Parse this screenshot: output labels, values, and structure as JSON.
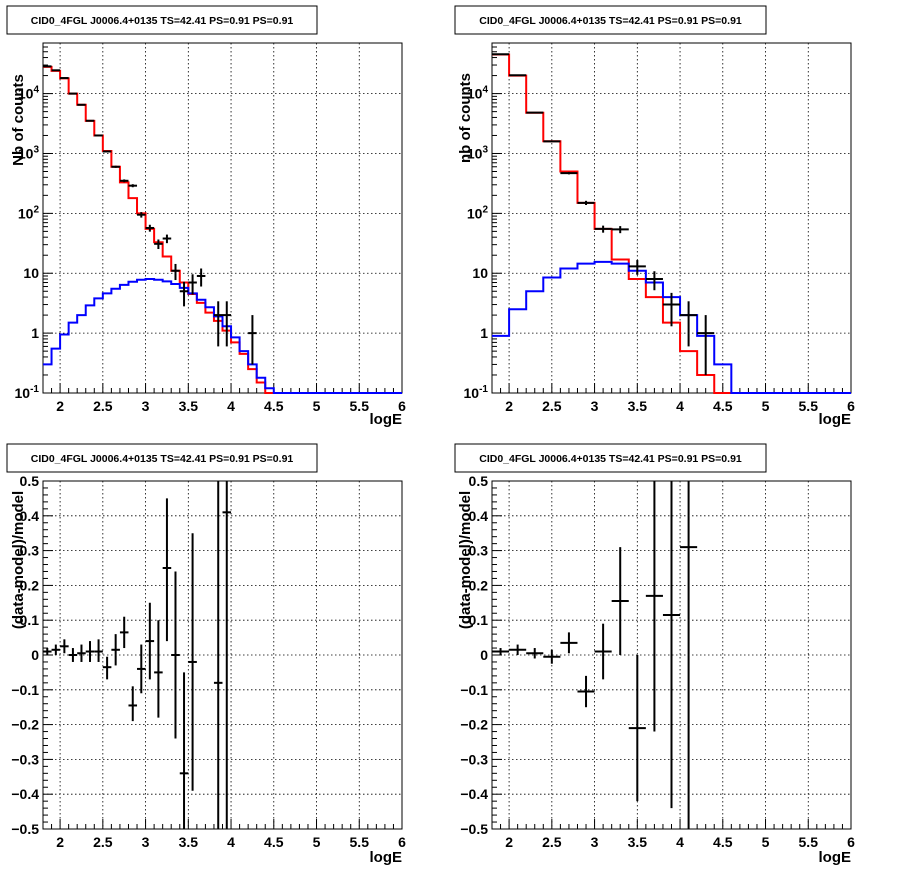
{
  "chart_data": [
    {
      "type": "line",
      "title": "CID0_4FGL J0006.4+0135 TS=42.41 PS=0.91 PS=0.91",
      "xlabel": "logE",
      "ylabel": "Nb of counts",
      "xlim": [
        1.8,
        6.0
      ],
      "ylim": [
        0.1,
        70000
      ],
      "yscale": "log",
      "grid": true,
      "xticks": [
        "2",
        "2.5",
        "3",
        "3.5",
        "4",
        "4.5",
        "5",
        "5.5",
        "6"
      ],
      "yticks": [
        {
          "base": "10",
          "exp": "-1",
          "value": 0.1
        },
        {
          "base": "1",
          "exp": "",
          "value": 1
        },
        {
          "base": "10",
          "exp": "",
          "value": 10
        },
        {
          "base": "10",
          "exp": "2",
          "value": 100
        },
        {
          "base": "10",
          "exp": "3",
          "value": 1000
        },
        {
          "base": "10",
          "exp": "4",
          "value": 10000
        }
      ],
      "bin_edges": [
        1.8,
        1.9,
        2.0,
        2.1,
        2.2,
        2.3,
        2.4,
        2.5,
        2.6,
        2.7,
        2.8,
        2.9,
        3.0,
        3.1,
        3.2,
        3.3,
        3.4,
        3.5,
        3.6,
        3.7,
        3.8,
        3.9,
        4.0,
        4.1,
        4.2,
        4.3,
        4.4,
        4.5,
        4.6,
        4.7,
        4.8,
        4.9,
        5.0,
        5.1,
        5.2,
        5.3,
        5.4,
        5.5,
        5.6,
        5.7,
        5.8,
        5.9,
        6.0
      ],
      "series": [
        {
          "color": "#ff0000",
          "values": [
            28000,
            24000,
            18000,
            10000,
            6500,
            3500,
            2000,
            1100,
            600,
            330,
            180,
            100,
            55,
            33,
            19,
            11,
            7,
            4.5,
            3.2,
            2.2,
            1.6,
            1.1,
            0.7,
            0.45,
            0.25,
            0.15,
            0.1,
            0.1,
            0.1,
            0.1,
            0.1,
            0.1,
            0.1,
            0.1,
            0.1,
            0.1,
            0.1,
            0.1,
            0.1,
            0.1,
            0.1,
            0.1
          ]
        },
        {
          "color": "#0000ff",
          "values": [
            0.3,
            0.55,
            0.95,
            1.5,
            2.0,
            2.9,
            3.8,
            4.6,
            5.5,
            6.4,
            7.2,
            7.8,
            8.0,
            7.8,
            7.3,
            6.6,
            5.7,
            4.6,
            3.6,
            2.7,
            1.9,
            1.3,
            0.85,
            0.5,
            0.3,
            0.18,
            0.12,
            0.1,
            0.1,
            0.1,
            0.1,
            0.1,
            0.1,
            0.1,
            0.1,
            0.1,
            0.1,
            0.1,
            0.1,
            0.1,
            0.1,
            0.1
          ]
        }
      ],
      "data_points": [
        {
          "x": 1.85,
          "y": 28500,
          "ylo": 28300,
          "yhi": 28700
        },
        {
          "x": 1.95,
          "y": 24500,
          "ylo": 24300,
          "yhi": 24700
        },
        {
          "x": 2.05,
          "y": 18200,
          "ylo": 18000,
          "yhi": 18400
        },
        {
          "x": 2.15,
          "y": 10000,
          "ylo": 9900,
          "yhi": 10100
        },
        {
          "x": 2.25,
          "y": 6500,
          "ylo": 6420,
          "yhi": 6580
        },
        {
          "x": 2.35,
          "y": 3520,
          "ylo": 3460,
          "yhi": 3580
        },
        {
          "x": 2.45,
          "y": 2000,
          "ylo": 1955,
          "yhi": 2045
        },
        {
          "x": 2.55,
          "y": 1080,
          "ylo": 1047,
          "yhi": 1113
        },
        {
          "x": 2.65,
          "y": 600,
          "ylo": 576,
          "yhi": 624
        },
        {
          "x": 2.75,
          "y": 350,
          "ylo": 331,
          "yhi": 369
        },
        {
          "x": 2.85,
          "y": 290,
          "ylo": 273,
          "yhi": 307
        },
        {
          "x": 2.95,
          "y": 95,
          "ylo": 85,
          "yhi": 105
        },
        {
          "x": 3.05,
          "y": 57,
          "ylo": 49.5,
          "yhi": 64.5
        },
        {
          "x": 3.15,
          "y": 31,
          "ylo": 25.4,
          "yhi": 36.6
        },
        {
          "x": 3.25,
          "y": 38,
          "ylo": 31.8,
          "yhi": 44.2
        },
        {
          "x": 3.35,
          "y": 11,
          "ylo": 7.7,
          "yhi": 14.3
        },
        {
          "x": 3.45,
          "y": 5,
          "ylo": 2.8,
          "yhi": 7.2
        },
        {
          "x": 3.55,
          "y": 7,
          "ylo": 4.4,
          "yhi": 9.6
        },
        {
          "x": 3.65,
          "y": 9,
          "ylo": 6.0,
          "yhi": 12.0
        },
        {
          "x": 3.85,
          "y": 2,
          "ylo": 0.6,
          "yhi": 3.4
        },
        {
          "x": 3.95,
          "y": 2,
          "ylo": 0.6,
          "yhi": 3.4
        },
        {
          "x": 4.25,
          "y": 1,
          "ylo": 0.3,
          "yhi": 2.0
        }
      ]
    },
    {
      "type": "line",
      "title": "CID0_4FGL J0006.4+0135 TS=42.41 PS=0.91 PS=0.91",
      "xlabel": "logE",
      "ylabel": "nb of counts",
      "xlim": [
        1.8,
        6.0
      ],
      "ylim": [
        0.1,
        70000
      ],
      "yscale": "log",
      "grid": true,
      "xticks": [
        "2",
        "2.5",
        "3",
        "3.5",
        "4",
        "4.5",
        "5",
        "5.5",
        "6"
      ],
      "yticks": [
        {
          "base": "10",
          "exp": "-1",
          "value": 0.1
        },
        {
          "base": "1",
          "exp": "",
          "value": 1
        },
        {
          "base": "10",
          "exp": "",
          "value": 10
        },
        {
          "base": "10",
          "exp": "2",
          "value": 100
        },
        {
          "base": "10",
          "exp": "3",
          "value": 1000
        },
        {
          "base": "10",
          "exp": "4",
          "value": 10000
        }
      ],
      "bin_edges": [
        1.8,
        2.0,
        2.2,
        2.4,
        2.6,
        2.8,
        3.0,
        3.2,
        3.4,
        3.6,
        3.8,
        4.0,
        4.2,
        4.4,
        4.6,
        4.8,
        5.0,
        5.2,
        5.4,
        5.6,
        5.8,
        6.0
      ],
      "series": [
        {
          "color": "#ff0000",
          "values": [
            45000,
            20000,
            4800,
            1600,
            500,
            150,
            55,
            17,
            8,
            4,
            1.5,
            0.5,
            0.2,
            0.1,
            0.1,
            0.1,
            0.1,
            0.1,
            0.1,
            0.1,
            0.1
          ]
        },
        {
          "color": "#0000ff",
          "values": [
            0.9,
            2.5,
            5.0,
            8.5,
            12,
            14.5,
            15.5,
            14.5,
            11,
            7,
            4,
            2,
            0.9,
            0.3,
            0.1,
            0.1,
            0.1,
            0.1,
            0.1,
            0.1,
            0.1
          ]
        }
      ],
      "data_points": [
        {
          "x": 1.9,
          "y": 45500,
          "ylo": 45300,
          "yhi": 45700
        },
        {
          "x": 2.1,
          "y": 20300,
          "ylo": 20150,
          "yhi": 20450
        },
        {
          "x": 2.3,
          "y": 4820,
          "ylo": 4750,
          "yhi": 4890
        },
        {
          "x": 2.5,
          "y": 1590,
          "ylo": 1550,
          "yhi": 1630
        },
        {
          "x": 2.7,
          "y": 470,
          "ylo": 448,
          "yhi": 492
        },
        {
          "x": 2.9,
          "y": 150,
          "ylo": 138,
          "yhi": 162
        },
        {
          "x": 3.1,
          "y": 55,
          "ylo": 47.6,
          "yhi": 62.4
        },
        {
          "x": 3.3,
          "y": 54,
          "ylo": 46.7,
          "yhi": 61.3
        },
        {
          "x": 3.5,
          "y": 13,
          "ylo": 9.4,
          "yhi": 16.6
        },
        {
          "x": 3.7,
          "y": 8,
          "ylo": 5.2,
          "yhi": 10.8
        },
        {
          "x": 3.9,
          "y": 3,
          "ylo": 1.3,
          "yhi": 4.7
        },
        {
          "x": 4.1,
          "y": 2,
          "ylo": 0.6,
          "yhi": 3.4
        },
        {
          "x": 4.3,
          "y": 1,
          "ylo": 0.2,
          "yhi": 2.0
        }
      ]
    },
    {
      "type": "scatter",
      "title": "CID0_4FGL J0006.4+0135 TS=42.41 PS=0.91 PS=0.91",
      "xlabel": "logE",
      "ylabel": "(data-model)/model",
      "xlim": [
        1.8,
        6.0
      ],
      "ylim": [
        -0.5,
        0.5
      ],
      "grid": true,
      "xticks": [
        "2",
        "2.5",
        "3",
        "3.5",
        "4",
        "4.5",
        "5",
        "5.5",
        "6"
      ],
      "yticks": [
        "−0.5",
        "−0.4",
        "−0.3",
        "−0.2",
        "−0.1",
        "0",
        "0.1",
        "0.2",
        "0.3",
        "0.4",
        "0.5"
      ],
      "xerr": 0.05,
      "points": [
        {
          "x": 1.85,
          "y": 0.01,
          "ylo": 0.0,
          "yhi": 0.02
        },
        {
          "x": 1.95,
          "y": 0.015,
          "ylo": 0.0,
          "yhi": 0.03
        },
        {
          "x": 2.05,
          "y": 0.025,
          "ylo": 0.005,
          "yhi": 0.045
        },
        {
          "x": 2.15,
          "y": 0.0,
          "ylo": -0.02,
          "yhi": 0.02
        },
        {
          "x": 2.25,
          "y": 0.005,
          "ylo": -0.02,
          "yhi": 0.03
        },
        {
          "x": 2.35,
          "y": 0.01,
          "ylo": -0.02,
          "yhi": 0.04
        },
        {
          "x": 2.45,
          "y": 0.01,
          "ylo": -0.02,
          "yhi": 0.045
        },
        {
          "x": 2.55,
          "y": -0.035,
          "ylo": -0.07,
          "yhi": -0.005
        },
        {
          "x": 2.65,
          "y": 0.015,
          "ylo": -0.03,
          "yhi": 0.06
        },
        {
          "x": 2.75,
          "y": 0.065,
          "ylo": 0.02,
          "yhi": 0.11
        },
        {
          "x": 2.85,
          "y": -0.145,
          "ylo": -0.19,
          "yhi": -0.09
        },
        {
          "x": 2.95,
          "y": -0.04,
          "ylo": -0.11,
          "yhi": 0.03
        },
        {
          "x": 3.05,
          "y": 0.04,
          "ylo": -0.07,
          "yhi": 0.15
        },
        {
          "x": 3.15,
          "y": -0.05,
          "ylo": -0.18,
          "yhi": 0.1
        },
        {
          "x": 3.25,
          "y": 0.25,
          "ylo": 0.04,
          "yhi": 0.45
        },
        {
          "x": 3.35,
          "y": 0.0,
          "ylo": -0.24,
          "yhi": 0.24
        },
        {
          "x": 3.45,
          "y": -0.34,
          "ylo": -0.5,
          "yhi": -0.05
        },
        {
          "x": 3.55,
          "y": -0.02,
          "ylo": -0.39,
          "yhi": 0.35
        },
        {
          "x": 3.85,
          "y": -0.08,
          "ylo": -0.5,
          "yhi": 0.5
        },
        {
          "x": 3.95,
          "y": 0.41,
          "ylo": -0.5,
          "yhi": 0.5
        }
      ]
    },
    {
      "type": "scatter",
      "title": "CID0_4FGL J0006.4+0135 TS=42.41 PS=0.91 PS=0.91",
      "xlabel": "logE",
      "ylabel": "(data-model)/model",
      "xlim": [
        1.8,
        6.0
      ],
      "ylim": [
        -0.5,
        0.5
      ],
      "grid": true,
      "xticks": [
        "2",
        "2.5",
        "3",
        "3.5",
        "4",
        "4.5",
        "5",
        "5.5",
        "6"
      ],
      "yticks": [
        "−0.5",
        "−0.4",
        "−0.3",
        "−0.2",
        "−0.1",
        "0",
        "0.1",
        "0.2",
        "0.3",
        "0.4",
        "0.5"
      ],
      "xerr": 0.1,
      "points": [
        {
          "x": 1.9,
          "y": 0.01,
          "ylo": 0.0,
          "yhi": 0.02
        },
        {
          "x": 2.1,
          "y": 0.015,
          "ylo": 0.0,
          "yhi": 0.03
        },
        {
          "x": 2.3,
          "y": 0.005,
          "ylo": -0.01,
          "yhi": 0.02
        },
        {
          "x": 2.5,
          "y": -0.005,
          "ylo": -0.025,
          "yhi": 0.015
        },
        {
          "x": 2.7,
          "y": 0.035,
          "ylo": 0.005,
          "yhi": 0.065
        },
        {
          "x": 2.9,
          "y": -0.105,
          "ylo": -0.15,
          "yhi": -0.06
        },
        {
          "x": 3.1,
          "y": 0.01,
          "ylo": -0.07,
          "yhi": 0.09
        },
        {
          "x": 3.3,
          "y": 0.155,
          "ylo": 0.0,
          "yhi": 0.31
        },
        {
          "x": 3.5,
          "y": -0.21,
          "ylo": -0.42,
          "yhi": 0.0
        },
        {
          "x": 3.7,
          "y": 0.17,
          "ylo": -0.22,
          "yhi": 0.5
        },
        {
          "x": 3.9,
          "y": 0.115,
          "ylo": -0.44,
          "yhi": 0.5
        },
        {
          "x": 4.1,
          "y": 0.31,
          "ylo": -0.5,
          "yhi": 0.5
        }
      ]
    }
  ]
}
